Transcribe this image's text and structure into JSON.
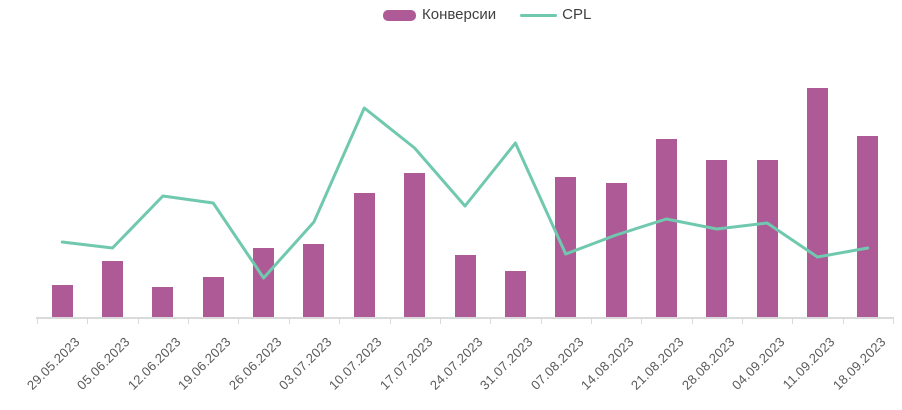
{
  "legend": {
    "items": [
      {
        "label": "Конверсии",
        "swatch": "bar-swatch"
      },
      {
        "label": "CPL",
        "swatch": "line-swatch"
      }
    ]
  },
  "chart_data": {
    "type": "combo",
    "title": "",
    "xlabel": "",
    "ylabel": "",
    "grid": false,
    "y_axis_visible": false,
    "legend_position": "top-center",
    "axis_color": "#d9d9d9",
    "tick_label_color": "#595959",
    "legend_text_color": "#404040",
    "value_units": "relative (no y-axis scale shown in image)",
    "ylim": [
      0,
      258
    ],
    "categories": [
      "29.05.2023",
      "05.06.2023",
      "12.06.2023",
      "19.06.2023",
      "26.06.2023",
      "03.07.2023",
      "10.07.2023",
      "17.07.2023",
      "24.07.2023",
      "31.07.2023",
      "07.08.2023",
      "14.08.2023",
      "21.08.2023",
      "28.08.2023",
      "04.09.2023",
      "11.09.2023",
      "18.09.2023"
    ],
    "series": [
      {
        "name": "Конверсии",
        "type": "bar",
        "color": "#ae5a96",
        "values": [
          32,
          56,
          30,
          40,
          69,
          73,
          124,
          144,
          62,
          46,
          140,
          134,
          178,
          157,
          157,
          229,
          181
        ]
      },
      {
        "name": "CPL",
        "type": "line",
        "color": "#70c9ae",
        "values": [
          75,
          69,
          121,
          114,
          39,
          95,
          209,
          169,
          111,
          174,
          63,
          82,
          98,
          88,
          94,
          60,
          69
        ]
      }
    ]
  }
}
